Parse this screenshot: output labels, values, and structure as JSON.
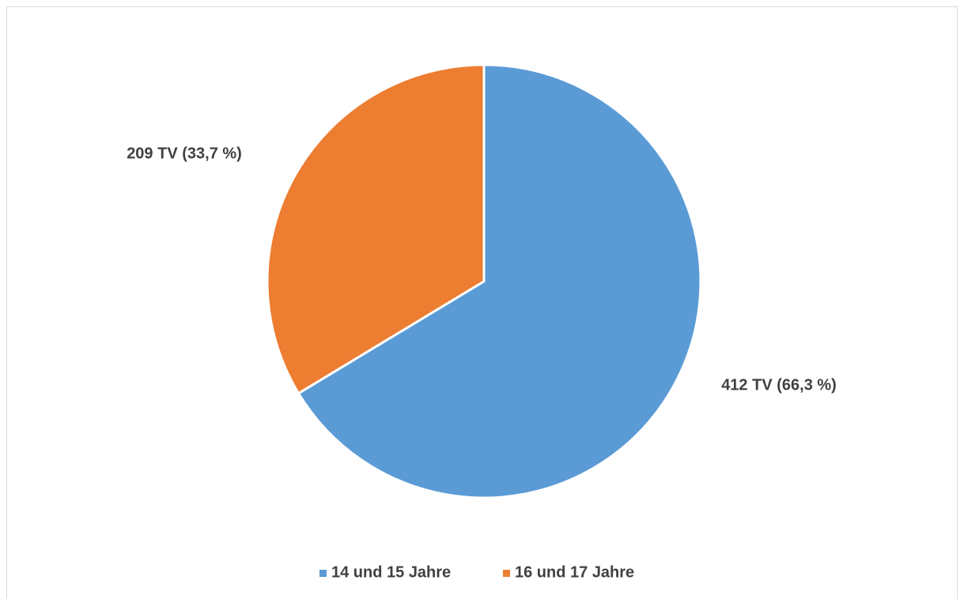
{
  "chart_data": {
    "type": "pie",
    "categories": [
      "14 und 15 Jahre",
      "16 und 17 Jahre"
    ],
    "values": [
      412,
      209
    ],
    "value_labels": [
      "412 TV (66,3 %)",
      "209 TV (33,7 %)"
    ],
    "colors": [
      "#5b9bd5",
      "#ed7d31"
    ],
    "legend": "bottom"
  }
}
